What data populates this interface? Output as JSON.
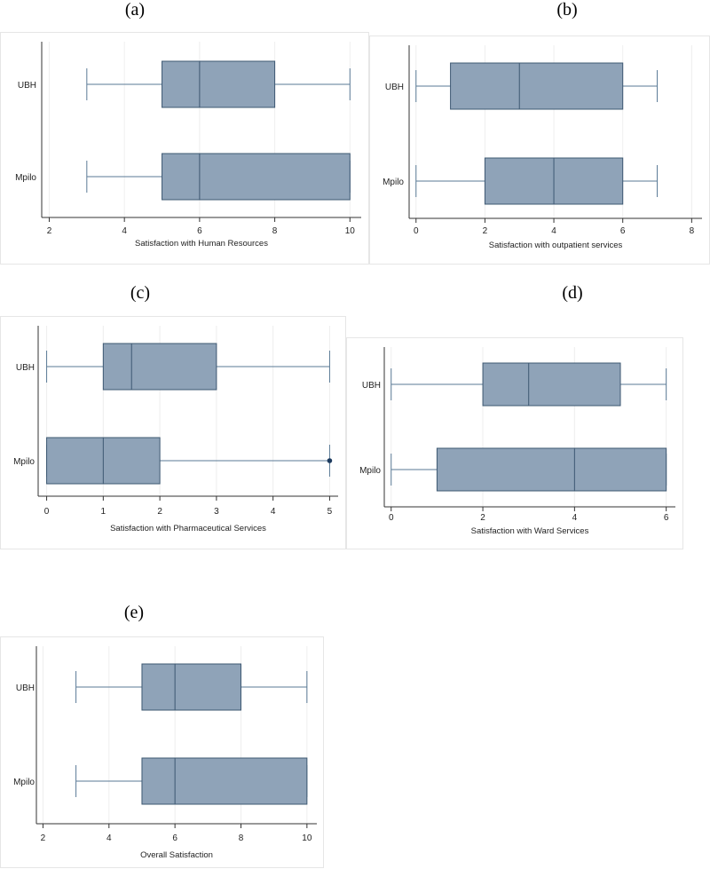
{
  "chart_data": [
    {
      "type": "boxplot",
      "panel_label": "(a)",
      "xlabel": "Satisfaction with Human Resources",
      "xlim": [
        1.8,
        10.3
      ],
      "xticks": [
        2,
        4,
        6,
        8,
        10
      ],
      "categories": [
        "UBH",
        "Mpilo"
      ],
      "boxes": [
        {
          "name": "UBH",
          "whisker_low": 3,
          "q1": 5,
          "median": 6,
          "q3": 8,
          "whisker_high": 10,
          "outliers": []
        },
        {
          "name": "Mpilo",
          "whisker_low": 3,
          "q1": 5,
          "median": 6,
          "q3": 10,
          "whisker_high": 10,
          "outliers": []
        }
      ]
    },
    {
      "type": "boxplot",
      "panel_label": "(b)",
      "xlabel": "Satisfaction with outpatient services",
      "xlim": [
        -0.2,
        8.3
      ],
      "xticks": [
        0,
        2,
        4,
        6,
        8
      ],
      "categories": [
        "UBH",
        "Mpilo"
      ],
      "boxes": [
        {
          "name": "UBH",
          "whisker_low": 0,
          "q1": 1,
          "median": 3,
          "q3": 6,
          "whisker_high": 7,
          "outliers": []
        },
        {
          "name": "Mpilo",
          "whisker_low": 0,
          "q1": 2,
          "median": 4,
          "q3": 6,
          "whisker_high": 7,
          "outliers": []
        }
      ]
    },
    {
      "type": "boxplot",
      "panel_label": "(c)",
      "xlabel": "Satisfaction with Pharmaceutical Services",
      "xlim": [
        -0.15,
        5.15
      ],
      "xticks": [
        0,
        1,
        2,
        3,
        4,
        5
      ],
      "categories": [
        "UBH",
        "Mpilo"
      ],
      "boxes": [
        {
          "name": "UBH",
          "whisker_low": 0,
          "q1": 1,
          "median": 1.5,
          "q3": 3,
          "whisker_high": 5,
          "outliers": []
        },
        {
          "name": "Mpilo",
          "whisker_low": 0,
          "q1": 0,
          "median": 1,
          "q3": 2,
          "whisker_high": 5,
          "outliers": [
            5
          ]
        }
      ]
    },
    {
      "type": "boxplot",
      "panel_label": "(d)",
      "xlabel": "Satisfaction with Ward Services",
      "xlim": [
        -0.15,
        6.2
      ],
      "xticks": [
        0,
        2,
        4,
        6
      ],
      "categories": [
        "UBH",
        "Mpilo"
      ],
      "boxes": [
        {
          "name": "UBH",
          "whisker_low": 0,
          "q1": 2,
          "median": 3,
          "q3": 5,
          "whisker_high": 6,
          "outliers": []
        },
        {
          "name": "Mpilo",
          "whisker_low": 0,
          "q1": 1,
          "median": 4,
          "q3": 6,
          "whisker_high": 6,
          "outliers": []
        }
      ]
    },
    {
      "type": "boxplot",
      "panel_label": "(e)",
      "xlabel": "Overall Satisfaction",
      "xlim": [
        1.8,
        10.3
      ],
      "xticks": [
        2,
        4,
        6,
        8,
        10
      ],
      "categories": [
        "UBH",
        "Mpilo"
      ],
      "boxes": [
        {
          "name": "UBH",
          "whisker_low": 3,
          "q1": 5,
          "median": 6,
          "q3": 8,
          "whisker_high": 10,
          "outliers": []
        },
        {
          "name": "Mpilo",
          "whisker_low": 3,
          "q1": 5,
          "median": 6,
          "q3": 10,
          "whisker_high": 10,
          "outliers": []
        }
      ]
    }
  ],
  "colors": {
    "box_fill": "#8fa3b8",
    "box_stroke": "#3d5872",
    "whisker": "#5a7a96",
    "grid": "#eeeeee",
    "outlier": "#1c3a5e"
  }
}
